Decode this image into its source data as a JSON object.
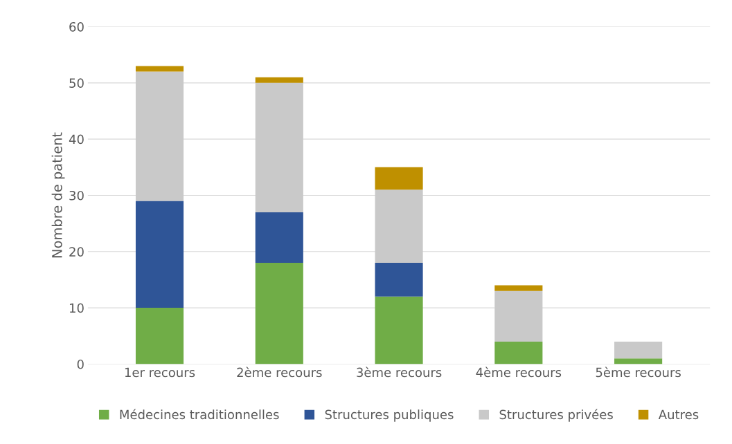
{
  "chart_data": {
    "type": "bar",
    "stacked": true,
    "ylabel": "Nombre de patient",
    "categories": [
      "1er recours",
      "2ème recours",
      "3ème recours",
      "4ème recours",
      "5ème recours"
    ],
    "series": [
      {
        "name": "Médecines traditionnelles",
        "color": "#70ad47",
        "values": [
          10,
          18,
          12,
          4,
          1
        ]
      },
      {
        "name": "Structures publiques",
        "color": "#2f5597",
        "values": [
          19,
          9,
          6,
          0,
          0
        ]
      },
      {
        "name": "Structures privées",
        "color": "#c9c9c9",
        "values": [
          23,
          23,
          13,
          9,
          3
        ]
      },
      {
        "name": "Autres",
        "color": "#bf9000",
        "values": [
          1,
          1,
          4,
          1,
          0
        ]
      }
    ],
    "ylim": [
      0,
      60
    ],
    "yticks": [
      0,
      10,
      20,
      30,
      40,
      50,
      60
    ],
    "grid": "y",
    "legend": "bottom"
  }
}
